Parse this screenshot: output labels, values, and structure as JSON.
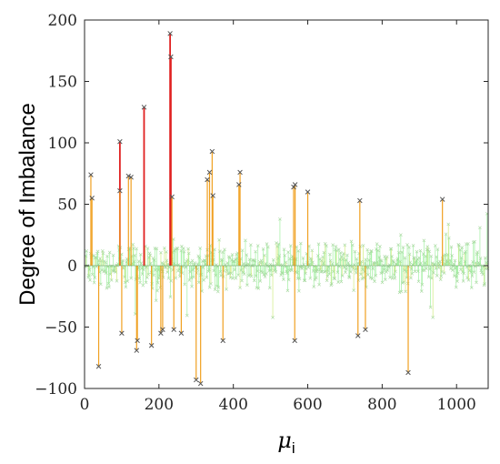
{
  "chart_data": {
    "type": "stem",
    "xlabel": "μ",
    "xlabel_subscript": "i",
    "ylabel": "Degree of Imbalance",
    "xlim": [
      0,
      1085
    ],
    "ylim": [
      -100,
      200
    ],
    "xticks": [
      0,
      200,
      400,
      600,
      800,
      1000
    ],
    "yticks": [
      -100,
      -50,
      0,
      50,
      100,
      150,
      200
    ],
    "xtick_labels": [
      "0",
      "200",
      "400",
      "600",
      "800",
      "1000"
    ],
    "ytick_labels": [
      "−100",
      "−50",
      "0",
      "50",
      "100",
      "150",
      "200"
    ],
    "grid": false,
    "background_noise": {
      "x_range": [
        0,
        1085
      ],
      "typical_abs_value": 15,
      "max_abs_value": 45,
      "color": "#90ee90",
      "note_color": "#c8e86a"
    },
    "colors": {
      "high": "#e02020",
      "mid": "#f0a020",
      "low": "#90ee90",
      "marker": "#555555",
      "axis": "#262626"
    },
    "series": [
      {
        "values": [
          [
            17,
            74
          ],
          [
            20,
            55
          ],
          [
            38,
            -82
          ],
          [
            95,
            101
          ],
          [
            95,
            61
          ],
          [
            100,
            -55
          ],
          [
            118,
            73
          ],
          [
            125,
            72
          ],
          [
            140,
            -69
          ],
          [
            142,
            -61
          ],
          [
            160,
            129
          ],
          [
            180,
            -65
          ],
          [
            205,
            -55
          ],
          [
            210,
            -52
          ],
          [
            230,
            189
          ],
          [
            232,
            170
          ],
          [
            235,
            56
          ],
          [
            240,
            -52
          ],
          [
            260,
            -55
          ],
          [
            300,
            -93
          ],
          [
            312,
            -96
          ],
          [
            330,
            70
          ],
          [
            336,
            76
          ],
          [
            343,
            93
          ],
          [
            345,
            57
          ],
          [
            372,
            -61
          ],
          [
            415,
            66
          ],
          [
            418,
            76
          ],
          [
            562,
            64
          ],
          [
            565,
            -61
          ],
          [
            566,
            66
          ],
          [
            600,
            60
          ],
          [
            735,
            -57
          ],
          [
            740,
            53
          ],
          [
            755,
            -52
          ],
          [
            870,
            -87
          ],
          [
            962,
            54
          ]
        ]
      }
    ]
  }
}
